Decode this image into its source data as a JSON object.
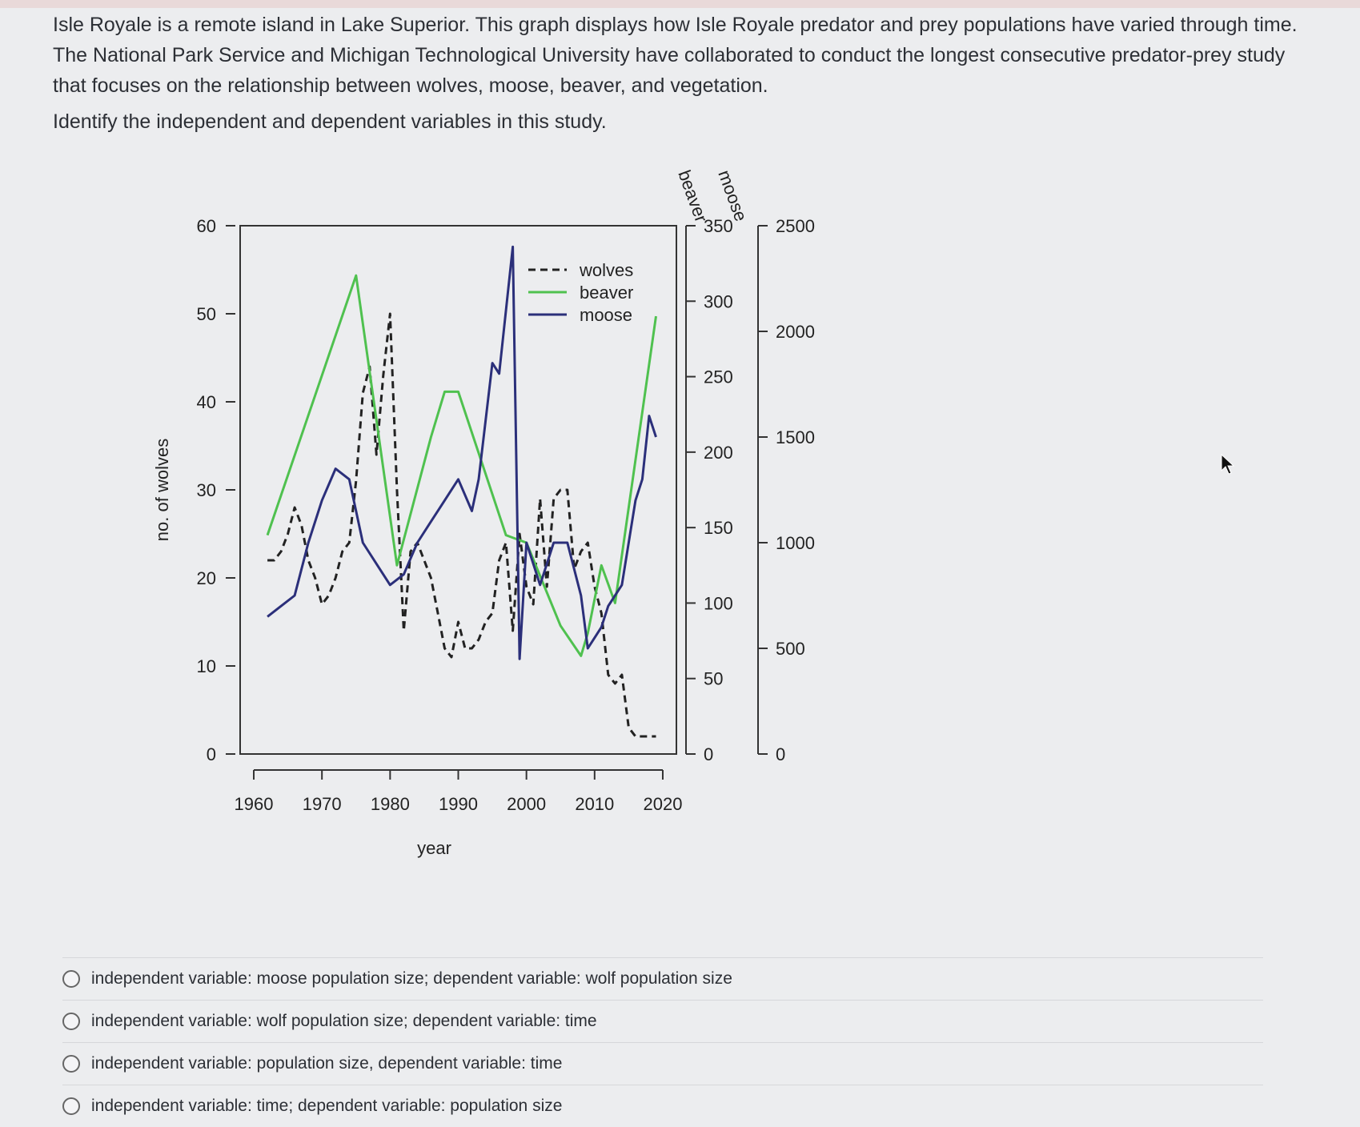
{
  "prompt": {
    "paragraph": "Isle Royale is a remote island in Lake Superior. This graph displays how Isle Royale predator and prey populations have varied through time. The National Park Service and Michigan Technological University have collaborated to conduct the longest consecutive predator-prey study that focuses on the relationship between wolves, moose, beaver, and vegetation.",
    "question": "Identify the independent and dependent variables in this study."
  },
  "chart_data": {
    "type": "line",
    "xlabel": "year",
    "ylabel": "no. of wolves",
    "right_axis_labels": [
      "beaver",
      "moose"
    ],
    "xlim": [
      1958,
      2022
    ],
    "x_ticks": [
      1960,
      1970,
      1980,
      1990,
      2000,
      2010,
      2020
    ],
    "ylim": [
      0,
      60
    ],
    "y_ticks": [
      0,
      10,
      20,
      30,
      40,
      50,
      60
    ],
    "beaver_ticks": [
      0,
      50,
      100,
      150,
      200,
      250,
      300,
      350
    ],
    "beaver_lim": [
      0,
      350
    ],
    "moose_ticks": [
      0,
      500,
      1000,
      1500,
      2000,
      2500
    ],
    "moose_lim": [
      0,
      2500
    ],
    "legend_position": "top-right",
    "colors": {
      "wolves": "#222222",
      "beaver": "#4fc14f",
      "moose": "#2b2f7a"
    },
    "series": [
      {
        "name": "wolves",
        "style": "dashed",
        "axis": "wolves",
        "x": [
          1962,
          1963,
          1964,
          1965,
          1966,
          1967,
          1968,
          1969,
          1970,
          1971,
          1972,
          1973,
          1974,
          1975,
          1976,
          1977,
          1978,
          1979,
          1980,
          1981,
          1982,
          1983,
          1984,
          1985,
          1986,
          1987,
          1988,
          1989,
          1990,
          1991,
          1992,
          1993,
          1994,
          1995,
          1996,
          1997,
          1998,
          1999,
          2000,
          2001,
          2002,
          2003,
          2004,
          2005,
          2006,
          2007,
          2008,
          2009,
          2010,
          2011,
          2012,
          2013,
          2014,
          2015,
          2016,
          2017,
          2018,
          2019
        ],
        "values": [
          22,
          22,
          23,
          25,
          28,
          26,
          22,
          20,
          17,
          18,
          20,
          23,
          24,
          31,
          41,
          44,
          34,
          43,
          50,
          30,
          14,
          23,
          24,
          22,
          20,
          16,
          12,
          11,
          15,
          12,
          12,
          13,
          15,
          16,
          22,
          24,
          14,
          25,
          19,
          17,
          29,
          19,
          29,
          30,
          30,
          21,
          23,
          24,
          19,
          16,
          9,
          8,
          9,
          3,
          2,
          2,
          2,
          2
        ]
      },
      {
        "name": "beaver",
        "style": "solid",
        "axis": "beaver",
        "x": [
          1962,
          1975,
          1981,
          1986,
          1988,
          1990,
          1997,
          2000,
          2005,
          2008,
          2009,
          2011,
          2013,
          2019
        ],
        "values": [
          145,
          317,
          125,
          210,
          240,
          240,
          145,
          140,
          85,
          65,
          80,
          125,
          100,
          290
        ]
      },
      {
        "name": "moose",
        "style": "solid",
        "axis": "moose",
        "x": [
          1962,
          1964,
          1966,
          1968,
          1970,
          1972,
          1974,
          1976,
          1978,
          1980,
          1982,
          1984,
          1986,
          1988,
          1990,
          1992,
          1993,
          1995,
          1996,
          1998,
          1999,
          2000,
          2002,
          2004,
          2006,
          2008,
          2009,
          2010,
          2011,
          2012,
          2014,
          2016,
          2017,
          2018,
          2019
        ],
        "values": [
          650,
          700,
          750,
          1000,
          1200,
          1350,
          1300,
          1000,
          900,
          800,
          850,
          1000,
          1100,
          1200,
          1300,
          1150,
          1300,
          1850,
          1800,
          2400,
          450,
          1000,
          800,
          1000,
          1000,
          750,
          500,
          550,
          600,
          700,
          800,
          1200,
          1300,
          1600,
          1500
        ]
      }
    ]
  },
  "options": [
    "independent variable: moose population size; dependent variable: wolf population size",
    "independent variable: wolf population size; dependent variable: time",
    "independent variable: population size, dependent variable: time",
    "independent variable: time; dependent variable: population size"
  ]
}
